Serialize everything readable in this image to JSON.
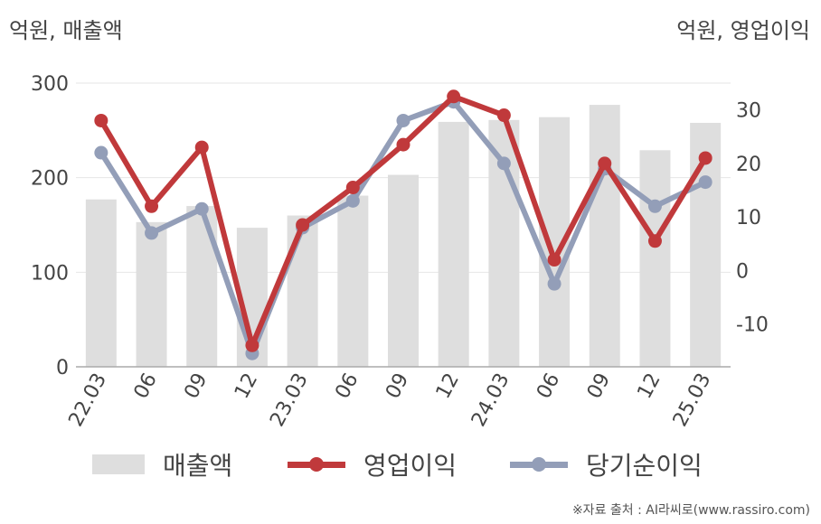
{
  "header": {
    "left_unit": "억원, 매출액",
    "right_unit": "억원, 영업이익"
  },
  "chart_data": {
    "type": "bar",
    "categories": [
      "22.03",
      "06",
      "09",
      "12",
      "23.03",
      "06",
      "09",
      "12",
      "24.03",
      "06",
      "09",
      "12",
      "25.03"
    ],
    "series": [
      {
        "name": "매출액",
        "type": "bar",
        "axis": "left",
        "color": "#dedede",
        "values": [
          177,
          153,
          170,
          147,
          160,
          181,
          203,
          259,
          261,
          264,
          277,
          229,
          258
        ]
      },
      {
        "name": "영업이익",
        "type": "line",
        "axis": "right",
        "color": "#c0393b",
        "values": [
          28,
          12,
          23,
          -14,
          8.5,
          15.5,
          23.5,
          32.5,
          29,
          2,
          20,
          5.5,
          21
        ]
      },
      {
        "name": "당기순이익",
        "type": "line",
        "axis": "right",
        "color": "#939eb8",
        "values": [
          22,
          7,
          11.5,
          -15.5,
          8,
          13,
          28,
          31.5,
          20,
          -2.5,
          19,
          12,
          16.5
        ]
      }
    ],
    "y_left": {
      "min": 0,
      "max": 300,
      "ticks": [
        0,
        100,
        200,
        300
      ]
    },
    "y_right": {
      "min": -18,
      "max": 35,
      "ticks": [
        -10,
        0,
        10,
        20,
        30
      ]
    },
    "grid": true,
    "legend_position": "bottom"
  },
  "legend": [
    {
      "label": "매출액",
      "kind": "bar",
      "color": "#dedede"
    },
    {
      "label": "영업이익",
      "kind": "line",
      "color": "#c0393b"
    },
    {
      "label": "당기순이익",
      "kind": "line",
      "color": "#939eb8"
    }
  ],
  "footer": {
    "source": "※자료 출처 : AI라씨로(www.rassiro.com)"
  }
}
